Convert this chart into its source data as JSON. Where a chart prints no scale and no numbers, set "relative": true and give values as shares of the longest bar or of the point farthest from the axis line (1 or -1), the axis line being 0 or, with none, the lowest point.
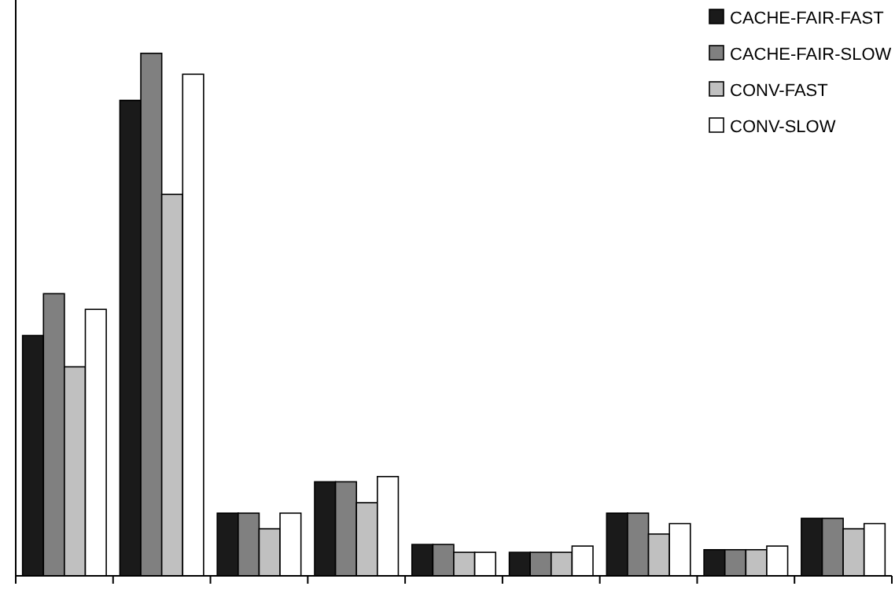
{
  "chart_data": {
    "type": "bar",
    "relative": true,
    "legend": "top right",
    "categories": [
      null,
      null,
      null,
      null,
      null,
      null,
      null,
      null,
      null
    ],
    "series": [
      {
        "name": "CACHE-FAIR-FAST",
        "color": "#1a1a1a",
        "values": [
          0.46,
          0.91,
          0.12,
          0.18,
          0.06,
          0.045,
          0.12,
          0.05,
          0.11
        ]
      },
      {
        "name": "CACHE-FAIR-SLOW",
        "color": "#808080",
        "values": [
          0.54,
          1,
          0.12,
          0.18,
          0.06,
          0.045,
          0.12,
          0.05,
          0.11
        ]
      },
      {
        "name": "CONV-FAST",
        "color": "#c0c0c0",
        "values": [
          0.4,
          0.73,
          0.09,
          0.14,
          0.045,
          0.045,
          0.08,
          0.05,
          0.09
        ]
      },
      {
        "name": "CONV-SLOW",
        "color": "#ffffff",
        "values": [
          0.51,
          0.96,
          0.12,
          0.19,
          0.045,
          0.057,
          0.1,
          0.057,
          0.1
        ]
      }
    ]
  }
}
